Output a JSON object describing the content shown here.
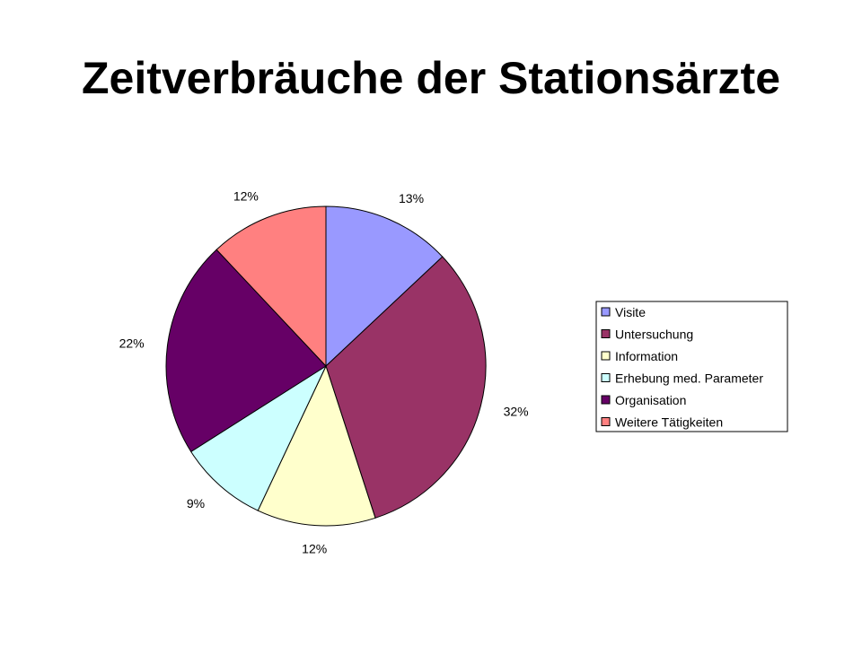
{
  "slide": {
    "title": "Zeitverbräuche der Stationsärzte"
  },
  "chart_data": {
    "type": "pie",
    "title": "",
    "categories": [
      "Visite",
      "Untersuchung",
      "Information",
      "Erhebung med. Parameter",
      "Organisation",
      "Weitere Tätigkeiten"
    ],
    "values": [
      13,
      32,
      12,
      9,
      22,
      12
    ],
    "labels": [
      "13%",
      "32%",
      "12%",
      "9%",
      "22%",
      "12%"
    ],
    "colors": [
      "#9999ff",
      "#993366",
      "#ffffcc",
      "#ccffff",
      "#660066",
      "#ff8080"
    ],
    "start_angle": "12 o'clock, clockwise",
    "legend": "right"
  }
}
